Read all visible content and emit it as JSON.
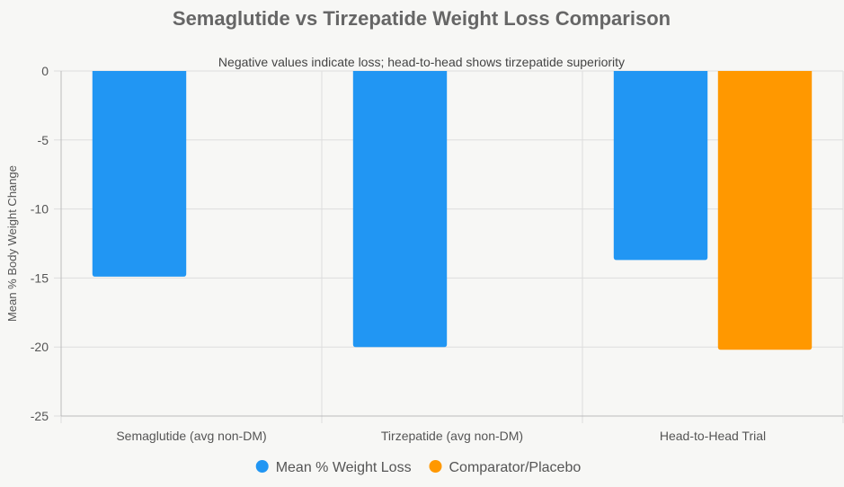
{
  "colors": {
    "series1": "#2196f3",
    "series2": "#ff9800",
    "grid": "#dddddd",
    "axis": "#bbbbbb",
    "background": "#f7f7f5"
  },
  "chart_data": {
    "type": "bar",
    "title": "Semaglutide vs Tirzepatide Weight Loss Comparison",
    "subtitle": "Negative values indicate loss; head-to-head shows tirzepatide superiority",
    "xlabel": "",
    "ylabel": "Mean % Body Weight Change",
    "ylim": [
      -25,
      0
    ],
    "yticks": [
      0,
      -5,
      -10,
      -15,
      -20,
      -25
    ],
    "grid": true,
    "legend_position": "bottom",
    "categories": [
      "Semaglutide (avg non-DM)",
      "Tirzepatide (avg non-DM)",
      "Head-to-Head Trial"
    ],
    "series": [
      {
        "name": "Mean % Weight Loss",
        "values": [
          -14.9,
          -20.0,
          -13.7
        ]
      },
      {
        "name": "Comparator/Placebo",
        "values": [
          null,
          null,
          -20.2
        ]
      }
    ]
  }
}
